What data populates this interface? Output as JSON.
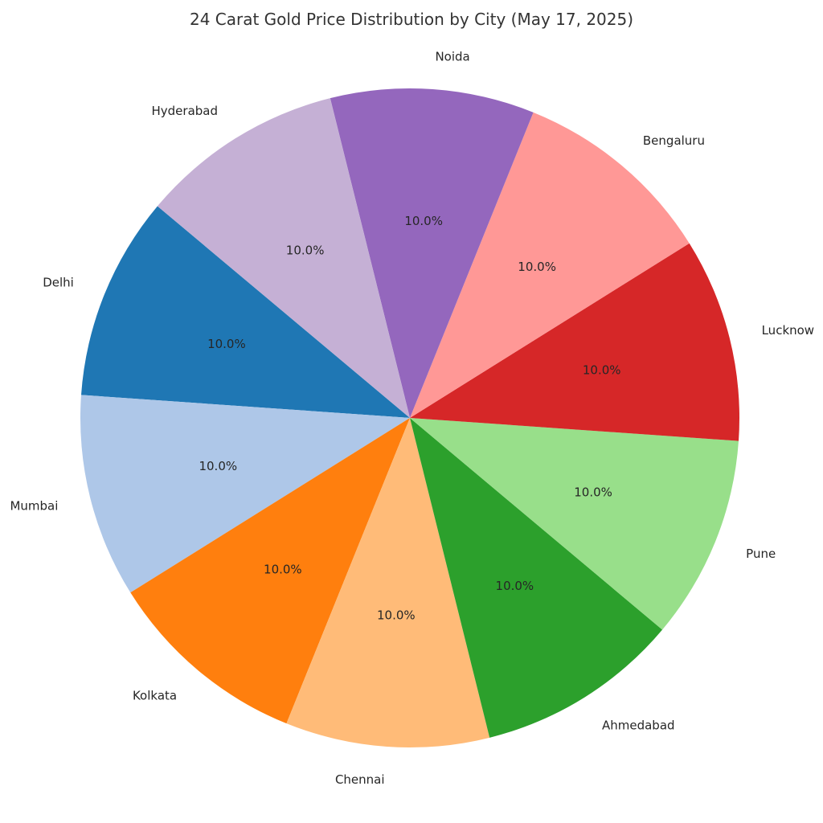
{
  "chart_data": {
    "type": "pie",
    "title": "24 Carat Gold Price Distribution by City (May 17, 2025)",
    "categories": [
      "Delhi",
      "Mumbai",
      "Kolkata",
      "Chennai",
      "Ahmedabad",
      "Pune",
      "Lucknow",
      "Bengaluru",
      "Noida",
      "Hyderabad"
    ],
    "values": [
      10.0,
      10.0,
      10.0,
      10.0,
      10.0,
      10.0,
      10.0,
      10.0,
      10.0,
      10.0
    ],
    "pct_labels": [
      "10.0%",
      "10.0%",
      "10.0%",
      "10.0%",
      "10.0%",
      "10.0%",
      "10.0%",
      "10.0%",
      "10.0%",
      "10.0%"
    ],
    "colors": [
      "#1f77b4",
      "#aec7e8",
      "#ff7f0e",
      "#ffbb78",
      "#2ca02c",
      "#98df8a",
      "#d62728",
      "#ff9896",
      "#9467bd",
      "#c5b0d5"
    ],
    "start_angle": 140,
    "direction": "counterclockwise",
    "label_distance": 1.1,
    "pct_distance": 0.6,
    "legend": "none",
    "grid": "off"
  }
}
